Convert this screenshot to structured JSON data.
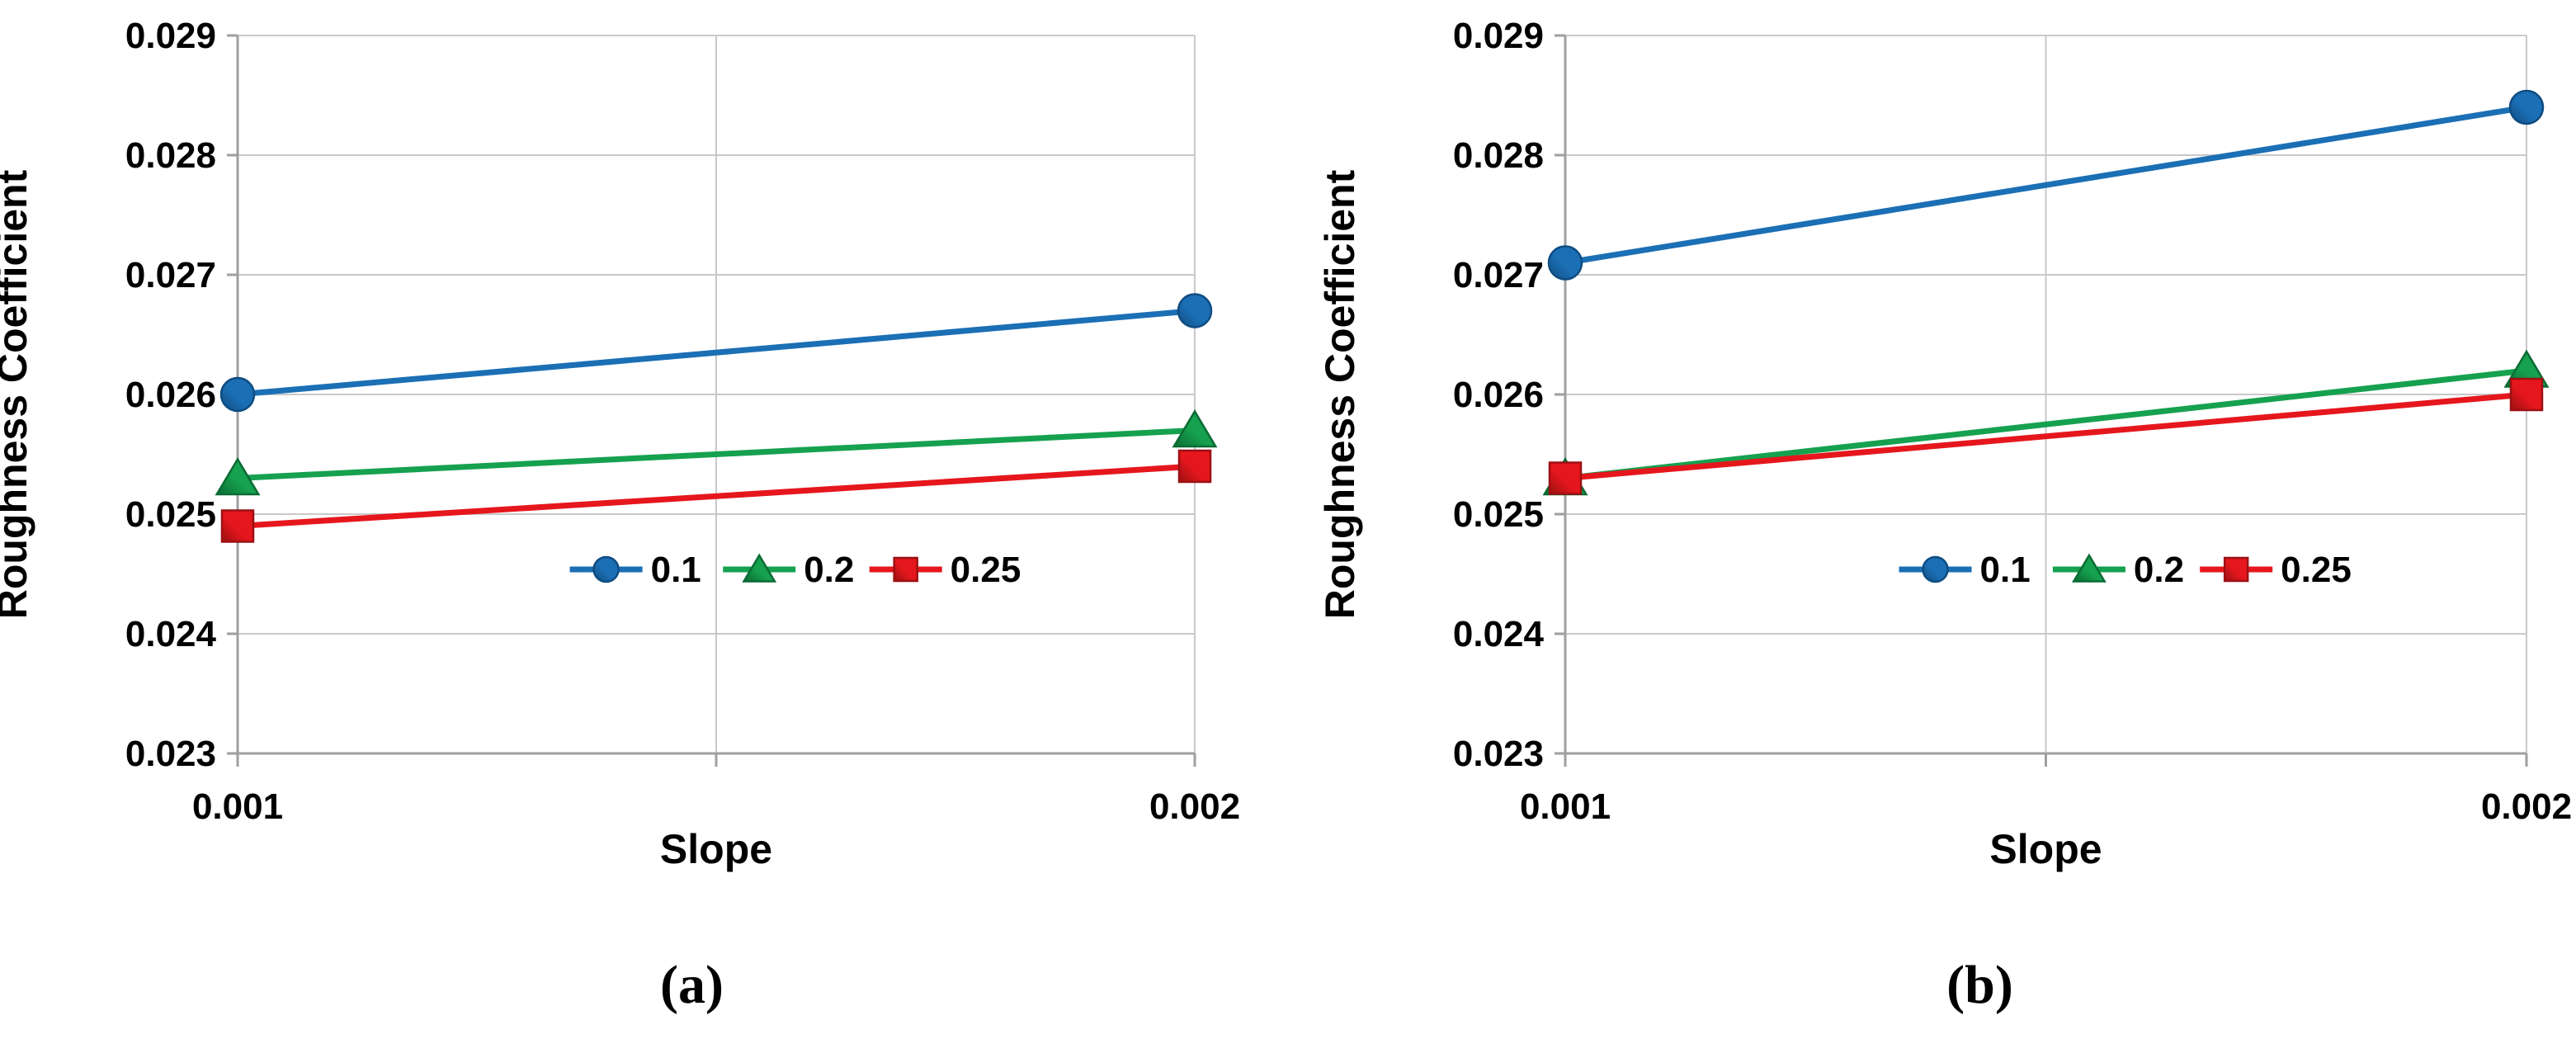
{
  "style": {
    "background": "#ffffff",
    "grid_color": "#c9c9c9",
    "axis_color": "#9f9f9f",
    "text_color": "#000000"
  },
  "chart_data": [
    {
      "type": "line",
      "caption": "(a)",
      "xlabel": "Slope",
      "ylabel": "Roughness Coefficient",
      "x": [
        0.001,
        0.002
      ],
      "x_tick_labels": [
        "0.001",
        "0.002"
      ],
      "ylim": [
        0.023,
        0.029
      ],
      "y_tick_interval": 0.001,
      "y_tick_labels": [
        "0.029",
        "0.028",
        "0.027",
        "0.026",
        "0.025",
        "0.024",
        "0.023"
      ],
      "grid": true,
      "legend_position": "inside lower-center",
      "series": [
        {
          "name": "0.1",
          "marker": "circle",
          "color": "#1b6fb5",
          "color_dark": "#0f4c81",
          "values": [
            0.026,
            0.0267
          ]
        },
        {
          "name": "0.2",
          "marker": "triangle",
          "color": "#16a14f",
          "color_dark": "#0a6b33",
          "values": [
            0.0253,
            0.0257
          ]
        },
        {
          "name": "0.25",
          "marker": "square",
          "color": "#e5171d",
          "color_dark": "#9c1013",
          "values": [
            0.0249,
            0.0254
          ]
        }
      ]
    },
    {
      "type": "line",
      "caption": "(b)",
      "xlabel": "Slope",
      "ylabel": "Roughness Coefficient",
      "x": [
        0.001,
        0.002
      ],
      "x_tick_labels": [
        "0.001",
        "0.002"
      ],
      "ylim": [
        0.023,
        0.029
      ],
      "y_tick_interval": 0.001,
      "y_tick_labels": [
        "0.029",
        "0.028",
        "0.027",
        "0.026",
        "0.025",
        "0.024",
        "0.023"
      ],
      "grid": true,
      "legend_position": "inside lower-center",
      "series": [
        {
          "name": "0.1",
          "marker": "circle",
          "color": "#1b6fb5",
          "color_dark": "#0f4c81",
          "values": [
            0.0271,
            0.0284
          ]
        },
        {
          "name": "0.2",
          "marker": "triangle",
          "color": "#16a14f",
          "color_dark": "#0a6b33",
          "values": [
            0.0253,
            0.0262
          ]
        },
        {
          "name": "0.25",
          "marker": "square",
          "color": "#e5171d",
          "color_dark": "#9c1013",
          "values": [
            0.0253,
            0.026
          ]
        }
      ]
    }
  ]
}
